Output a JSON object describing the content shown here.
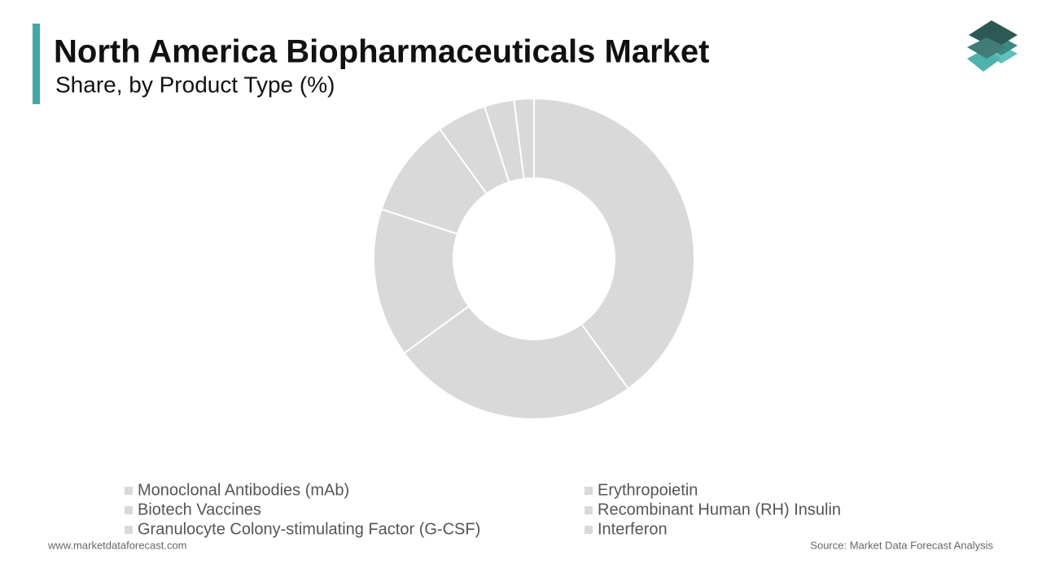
{
  "chart_data": {
    "type": "donut",
    "title": "North America Biopharmaceuticals Market",
    "subtitle": "Share, by Product Type (%)",
    "categories": [
      "Monoclonal Antibodies (mAb)",
      "Erythropoietin",
      "Biotech Vaccines",
      "Recombinant Human (RH) Insulin",
      "Granulocyte Colony-stimulating Factor (G-CSF)",
      "Interferon",
      null
    ],
    "values": [
      40,
      25,
      15,
      10,
      5,
      3,
      2
    ],
    "color": "#d9d9d9"
  },
  "footer": {
    "website": "www.marketdataforecast.com",
    "source": "Source: Market Data Forecast Analysis"
  }
}
